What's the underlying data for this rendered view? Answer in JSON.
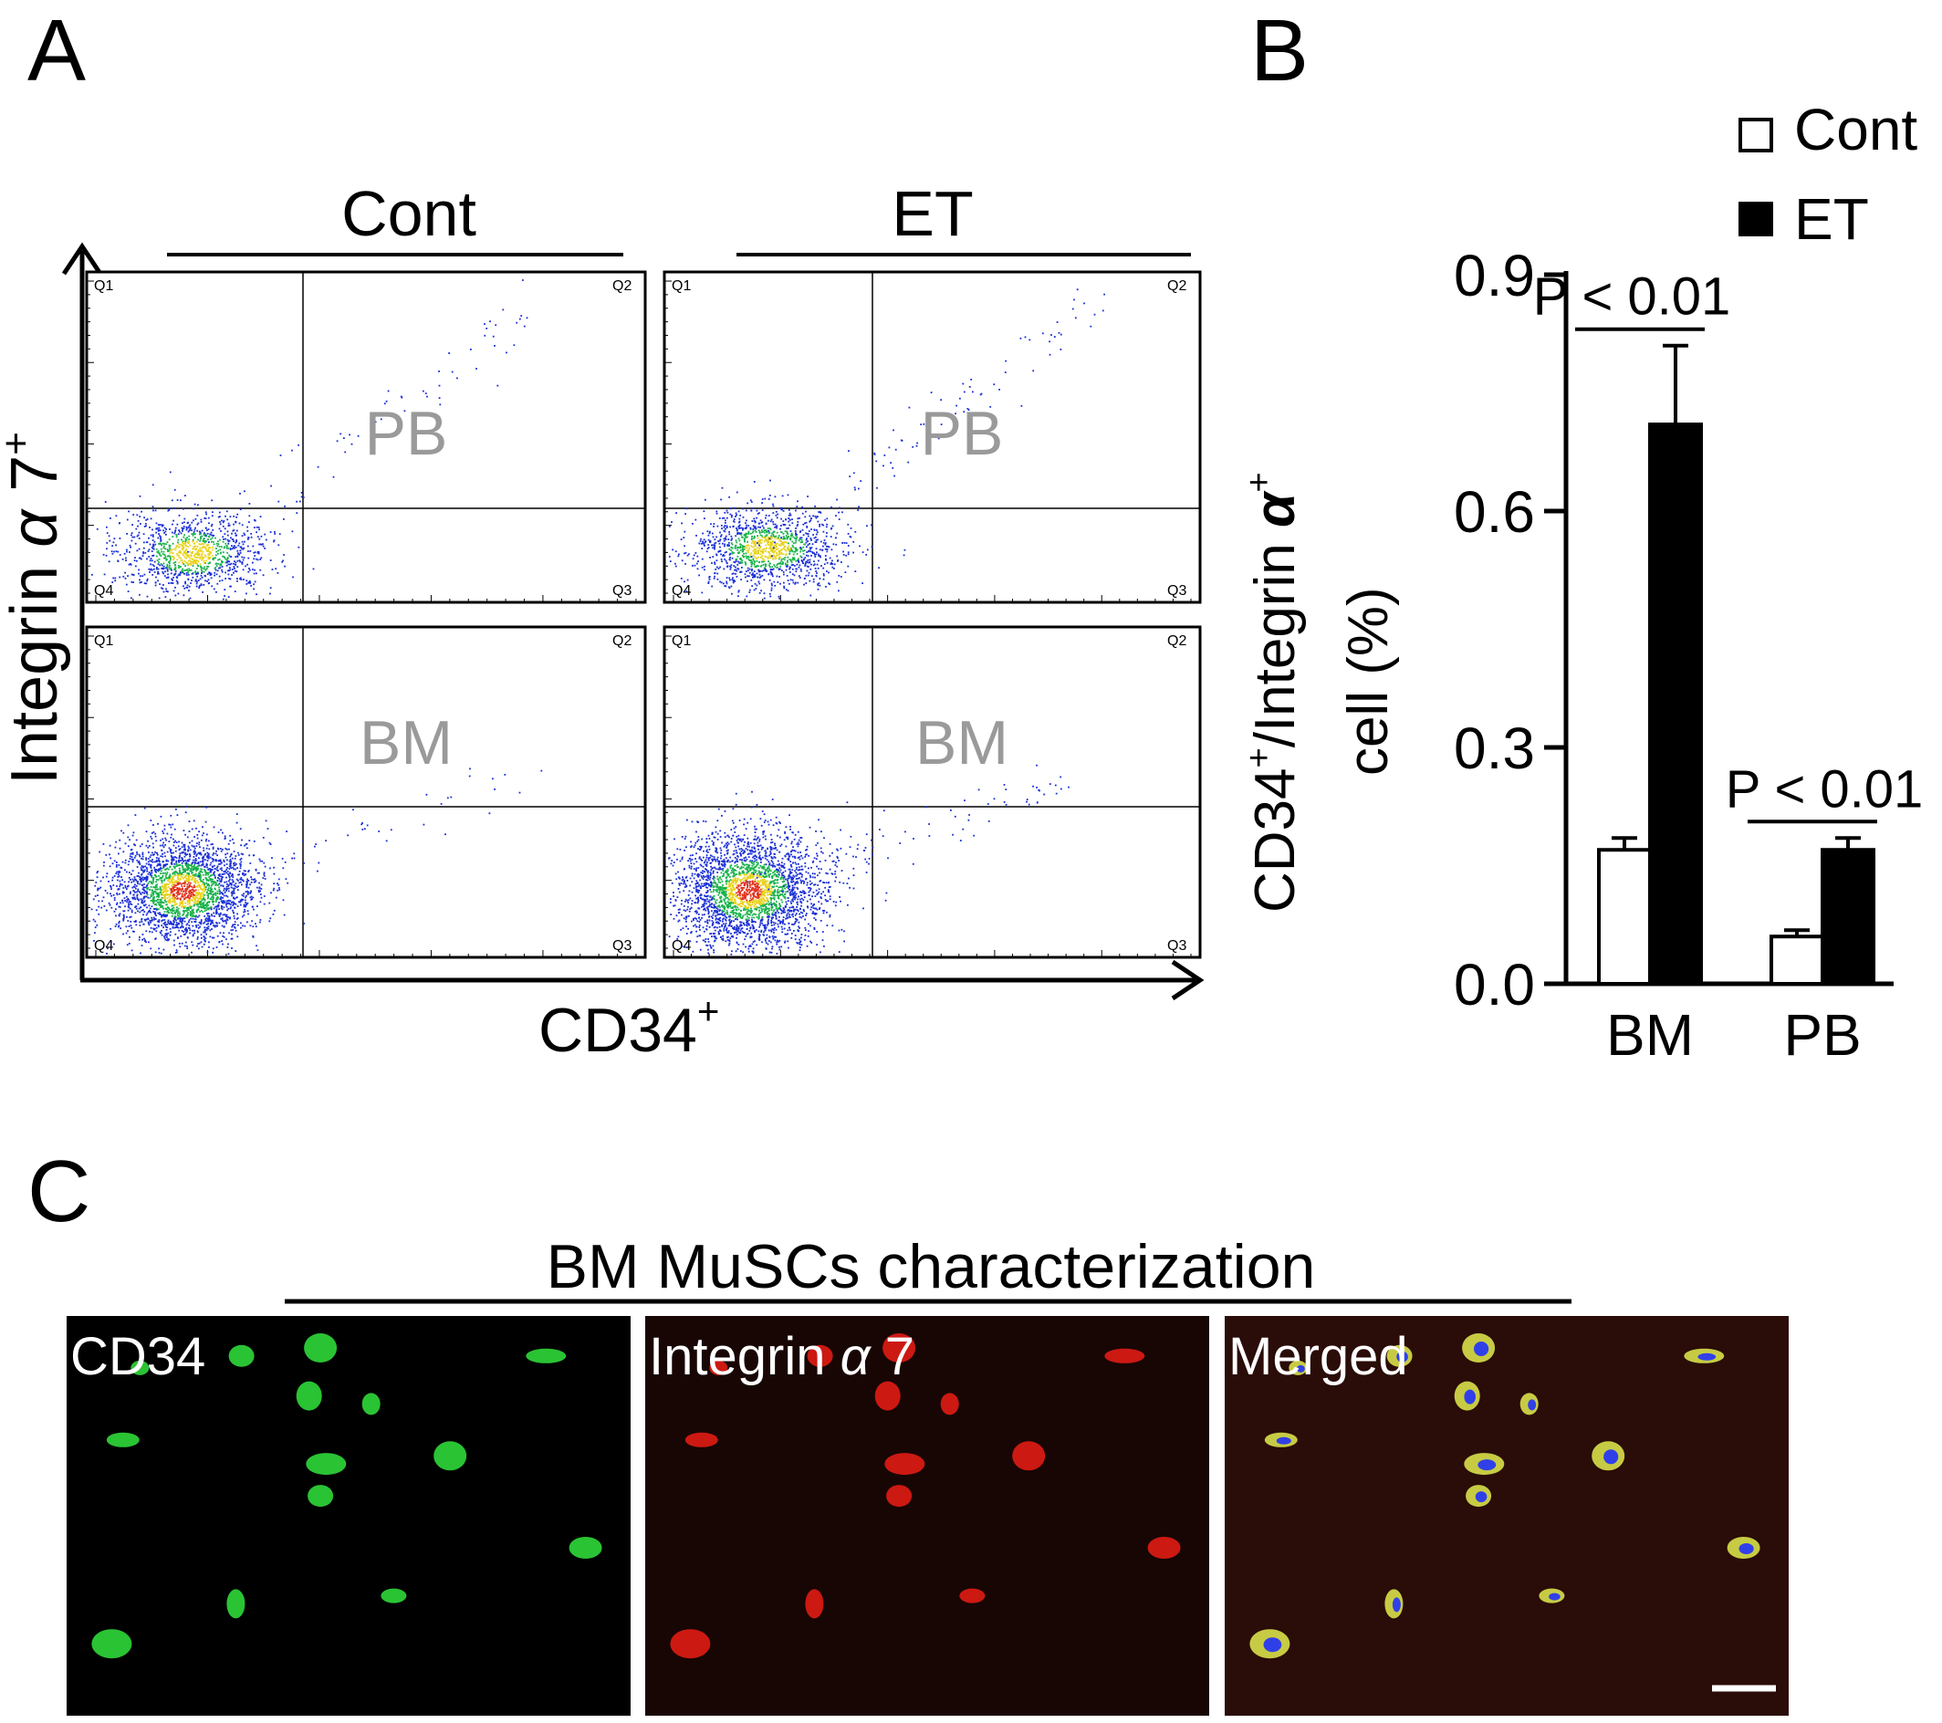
{
  "panels": {
    "a": "A",
    "b": "B",
    "c": "C"
  },
  "flow": {
    "col_headers": [
      "Cont",
      "ET"
    ],
    "row_labels": [
      "PB",
      "BM"
    ],
    "y_axis": {
      "pre": "Integrin ",
      "alpha": "α",
      "post": " 7",
      "sup": "+"
    },
    "x_axis": {
      "main": "CD34",
      "sup": "+"
    },
    "quadrants": [
      "Q1",
      "Q2",
      "Q3",
      "Q4"
    ],
    "colors": {
      "dots": "#1a2fd6",
      "mid": "#18b24a",
      "core": "#e8d21a",
      "hot": "#e0321e",
      "frame": "#000000"
    }
  },
  "chart_data": {
    "type": "bar",
    "categories": [
      "BM",
      "PB"
    ],
    "series": [
      {
        "name": "Cont",
        "values": [
          0.17,
          0.06
        ],
        "errors": [
          0.015,
          0.008
        ],
        "color": "#ffffff"
      },
      {
        "name": "ET",
        "values": [
          0.71,
          0.17
        ],
        "errors": [
          0.1,
          0.015
        ],
        "color": "#000000"
      }
    ],
    "ylim": [
      0,
      0.9
    ],
    "yticks": [
      "0.0",
      "0.3",
      "0.6",
      "0.9"
    ],
    "ylabel_line1": {
      "main": "CD34",
      "sup1": "+",
      "mid": "/Integrin ",
      "alpha": "α",
      "sup2": "+"
    },
    "ylabel_line2": "cell (%)",
    "annotations": [
      "P < 0.01",
      "P < 0.01"
    ],
    "legend": "top-right"
  },
  "micrographs": {
    "title": "BM MuSCs characterization",
    "panels": [
      {
        "pre": "CD34",
        "alpha": "",
        "post": "",
        "bg": "#000000",
        "cell": "#2fd83a"
      },
      {
        "pre": "Integrin  ",
        "alpha": "α",
        "post": " 7",
        "bg": "#180604",
        "cell": "#e01c14"
      },
      {
        "pre": "Merged",
        "alpha": "",
        "post": "",
        "bg": "#2a0c08",
        "cell": "#d8e04a"
      }
    ]
  }
}
